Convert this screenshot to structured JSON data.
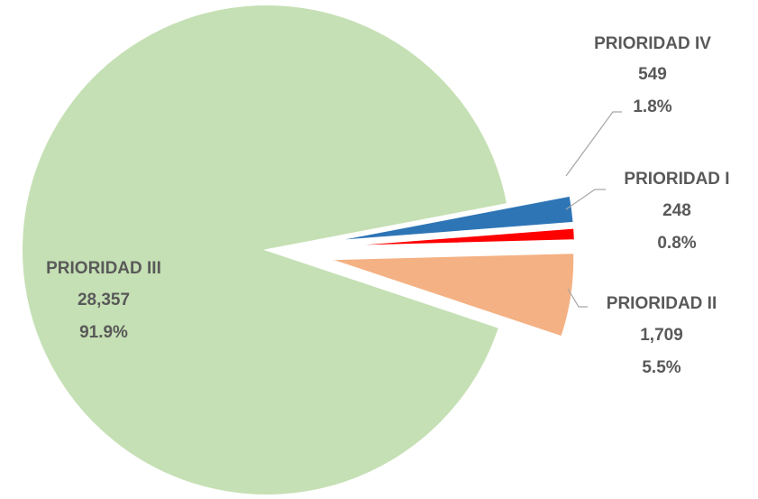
{
  "chart_data": {
    "type": "pie",
    "title": "",
    "legend": "none",
    "exploded": true,
    "slices": [
      {
        "name": "PRIORIDAD IV",
        "value": 549,
        "value_label": "549",
        "percent": "1.8%",
        "color": "#2e75b6"
      },
      {
        "name": "PRIORIDAD I",
        "value": 248,
        "value_label": "248",
        "percent": "0.8%",
        "color": "#ff0000"
      },
      {
        "name": "PRIORIDAD II",
        "value": 1709,
        "value_label": "1,709",
        "percent": "5.5%",
        "color": "#f4b183"
      },
      {
        "name": "PRIORIDAD III",
        "value": 28357,
        "value_label": "28,357",
        "percent": "91.9%",
        "color": "#c5e0b4"
      }
    ]
  }
}
